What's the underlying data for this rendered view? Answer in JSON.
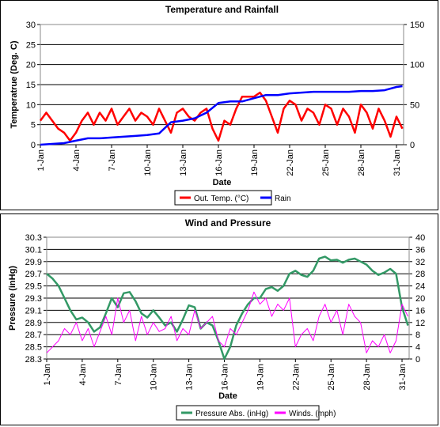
{
  "x_labels": [
    "1-Jan",
    "4-Jan",
    "7-Jan",
    "10-Jan",
    "13-Jan",
    "16-Jan",
    "19-Jan",
    "22-Jan",
    "25-Jan",
    "28-Jan",
    "31-Jan"
  ],
  "colors": {
    "temp": "#ff0000",
    "rain": "#0000ff",
    "pressure": "#339966",
    "wind": "#ff00ff",
    "grid": "#000000"
  },
  "chart_data": [
    {
      "type": "line",
      "title": "Temperature and Rainfall",
      "xlabel": "Date",
      "ylabel": "Temperatrue (Deg. C)",
      "ylim": [
        0,
        30
      ],
      "y2lim": [
        0,
        150
      ],
      "y_ticks": [
        "0",
        "5",
        "10",
        "15",
        "20",
        "25",
        "30"
      ],
      "y2_ticks": [
        "0",
        "50",
        "100",
        "150"
      ],
      "legend_position": "bottom-center",
      "grid": true,
      "series": [
        {
          "name": "Out. Temp. (°C)",
          "axis": "left",
          "color": "#ff0000",
          "x": [
            1,
            1.5,
            2,
            2.5,
            3,
            3.5,
            4,
            4.5,
            5,
            5.5,
            6,
            6.5,
            7,
            7.5,
            8,
            8.5,
            9,
            9.5,
            10,
            10.5,
            11,
            11.5,
            12,
            12.5,
            13,
            13.5,
            14,
            14.5,
            15,
            15.5,
            16,
            16.5,
            17,
            17.5,
            18,
            18.5,
            19,
            19.5,
            20,
            20.5,
            21,
            21.5,
            22,
            22.5,
            23,
            23.5,
            24,
            24.5,
            25,
            25.5,
            26,
            26.5,
            27,
            27.5,
            28,
            28.5,
            29,
            29.5,
            30,
            30.5,
            31,
            31.5
          ],
          "values": [
            6,
            8,
            6,
            4,
            3,
            1,
            3,
            6,
            8,
            5,
            8,
            6,
            9,
            5,
            7,
            9,
            6,
            8,
            7,
            5,
            9,
            6,
            3,
            8,
            9,
            7,
            6,
            8,
            9,
            4,
            1,
            6,
            5,
            9,
            12,
            12,
            12,
            13,
            11,
            7,
            3,
            9,
            11,
            10,
            6,
            9,
            8,
            5,
            10,
            9,
            5,
            9,
            7,
            3,
            10,
            8,
            4,
            9,
            6,
            2,
            7,
            4
          ],
          "data_values_estimated": true
        },
        {
          "name": "Rain",
          "axis": "right",
          "color": "#0000ff",
          "x": [
            1,
            2,
            3,
            4,
            5,
            6,
            7,
            8,
            9,
            10,
            11,
            12,
            13,
            14,
            15,
            16,
            17,
            18,
            19,
            20,
            21,
            22,
            23,
            24,
            25,
            26,
            27,
            28,
            29,
            30,
            31,
            31.5
          ],
          "values": [
            0,
            1,
            2,
            5,
            8,
            8,
            9,
            10,
            11,
            12,
            14,
            28,
            30,
            33,
            40,
            52,
            54,
            54,
            58,
            62,
            62,
            64,
            65,
            66,
            66,
            66,
            66,
            67,
            67,
            68,
            72,
            73
          ]
        }
      ]
    },
    {
      "type": "line",
      "title": "Wind and Pressure",
      "xlabel": "Date",
      "ylabel": "Pressure (inHg)",
      "ylim": [
        28.3,
        30.3
      ],
      "y2lim": [
        0,
        40
      ],
      "y_ticks": [
        "28.3",
        "28.5",
        "28.7",
        "28.9",
        "29.1",
        "29.3",
        "29.5",
        "29.7",
        "29.9",
        "30.1",
        "30.3"
      ],
      "y2_ticks": [
        "0",
        "4",
        "8",
        "12",
        "16",
        "20",
        "24",
        "28",
        "32",
        "36",
        "40"
      ],
      "legend_position": "bottom-center",
      "grid": true,
      "series": [
        {
          "name": "Pressure Abs. (inHg)",
          "axis": "left",
          "color": "#339966",
          "x": [
            1,
            1.5,
            2,
            2.5,
            3,
            3.5,
            4,
            4.5,
            5,
            5.5,
            6,
            6.5,
            7,
            7.5,
            8,
            8.5,
            9,
            9.5,
            10,
            10.5,
            11,
            11.5,
            12,
            12.5,
            13,
            13.5,
            14,
            14.5,
            15,
            15.5,
            16,
            16.5,
            17,
            17.5,
            18,
            18.5,
            19,
            19.5,
            20,
            20.5,
            21,
            21.5,
            22,
            22.5,
            23,
            23.5,
            24,
            24.5,
            25,
            25.5,
            26,
            26.5,
            27,
            27.5,
            28,
            28.5,
            29,
            29.5,
            30,
            30.5,
            31,
            31.5
          ],
          "values": [
            29.7,
            29.62,
            29.5,
            29.3,
            29.1,
            28.95,
            28.98,
            28.9,
            28.75,
            28.82,
            29.05,
            29.3,
            29.15,
            29.38,
            29.4,
            29.25,
            29.05,
            28.98,
            29.1,
            28.98,
            28.85,
            28.9,
            28.75,
            28.95,
            29.18,
            29.15,
            28.8,
            28.9,
            28.85,
            28.6,
            28.3,
            28.5,
            28.85,
            29.05,
            29.2,
            29.3,
            29.3,
            29.45,
            29.48,
            29.42,
            29.5,
            29.7,
            29.75,
            29.68,
            29.65,
            29.75,
            29.95,
            29.98,
            29.92,
            29.93,
            29.88,
            29.93,
            29.95,
            29.9,
            29.85,
            29.75,
            29.68,
            29.72,
            29.78,
            29.7,
            29.15,
            28.85
          ],
          "data_values_estimated": true
        },
        {
          "name": "Winds. (mph)",
          "axis": "right",
          "color": "#ff00ff",
          "x": [
            1,
            1.5,
            2,
            2.5,
            3,
            3.5,
            4,
            4.5,
            5,
            5.5,
            6,
            6.5,
            7,
            7.5,
            8,
            8.5,
            9,
            9.5,
            10,
            10.5,
            11,
            11.5,
            12,
            12.5,
            13,
            13.5,
            14,
            14.5,
            15,
            15.5,
            16,
            16.5,
            17,
            17.5,
            18,
            18.5,
            19,
            19.5,
            20,
            20.5,
            21,
            21.5,
            22,
            22.5,
            23,
            23.5,
            24,
            24.5,
            25,
            25.5,
            26,
            26.5,
            27,
            27.5,
            28,
            28.5,
            29,
            29.5,
            30,
            30.5,
            31,
            31.5
          ],
          "values": [
            2,
            4,
            6,
            10,
            8,
            12,
            6,
            10,
            4,
            9,
            14,
            8,
            20,
            12,
            16,
            6,
            14,
            8,
            12,
            9,
            10,
            14,
            6,
            10,
            8,
            16,
            10,
            12,
            14,
            6,
            4,
            10,
            8,
            12,
            16,
            22,
            18,
            20,
            14,
            18,
            16,
            20,
            4,
            8,
            10,
            6,
            14,
            18,
            12,
            16,
            8,
            18,
            14,
            12,
            2,
            6,
            4,
            8,
            2,
            6,
            18,
            14
          ],
          "data_values_estimated": true
        }
      ]
    }
  ]
}
